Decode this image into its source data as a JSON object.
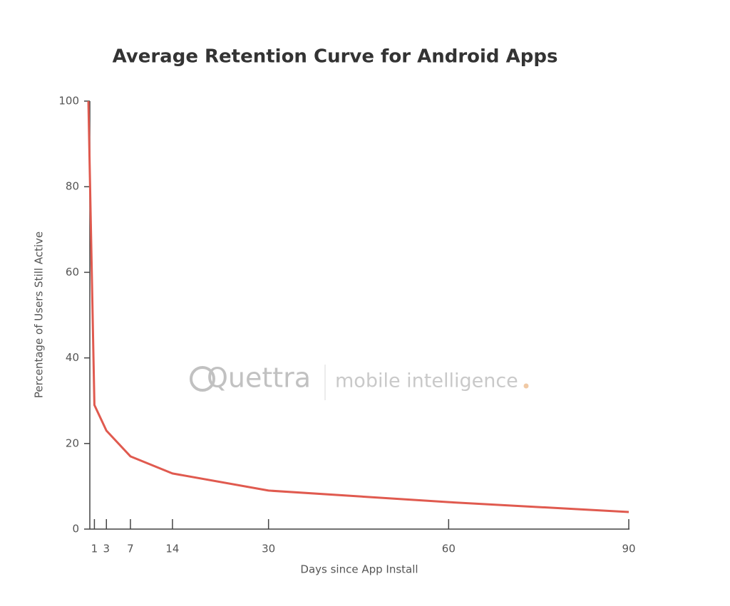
{
  "chart_data": {
    "type": "line",
    "title": "Average Retention Curve for Android Apps",
    "x_label": "Days since App Install",
    "y_label": "Percentage of Users Still Active",
    "x": [
      0,
      1,
      3,
      7,
      14,
      30,
      60,
      90
    ],
    "values": [
      100,
      29,
      23,
      17,
      13,
      9,
      6.3,
      4
    ],
    "color": "#e05a4f",
    "xlim": [
      0,
      90
    ],
    "xticks": [
      1,
      3,
      7,
      14,
      30,
      60,
      90
    ],
    "ylim": [
      0,
      100
    ],
    "yticks": [
      0,
      20,
      40,
      60,
      80,
      100
    ],
    "grid": false,
    "watermark": {
      "brand": "Quettra",
      "tagline": "mobile intelligence"
    }
  }
}
